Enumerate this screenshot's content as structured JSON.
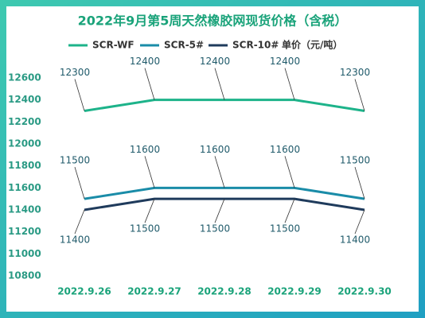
{
  "chart_data": {
    "type": "line",
    "title": "2022年9月第5周天然橡胶网现货价格（含税）",
    "unit_label": "单价（元/吨）",
    "categories": [
      "2022.9.26",
      "2022.9.27",
      "2022.9.28",
      "2022.9.29",
      "2022.9.30"
    ],
    "series": [
      {
        "name": "SCR-WF",
        "color": "#1db38a",
        "values": [
          12300,
          12400,
          12400,
          12400,
          12300
        ]
      },
      {
        "name": "SCR-5#",
        "color": "#1a8ca8",
        "values": [
          11500,
          11600,
          11600,
          11600,
          11500
        ]
      },
      {
        "name": "SCR-10#",
        "color": "#1f3b5c",
        "values": [
          11400,
          11500,
          11500,
          11500,
          11400
        ]
      }
    ],
    "ylim": [
      10800,
      12600
    ],
    "yticks": [
      10800,
      11000,
      11200,
      11400,
      11600,
      11800,
      12000,
      12200,
      12400,
      12600
    ],
    "grid": false
  }
}
